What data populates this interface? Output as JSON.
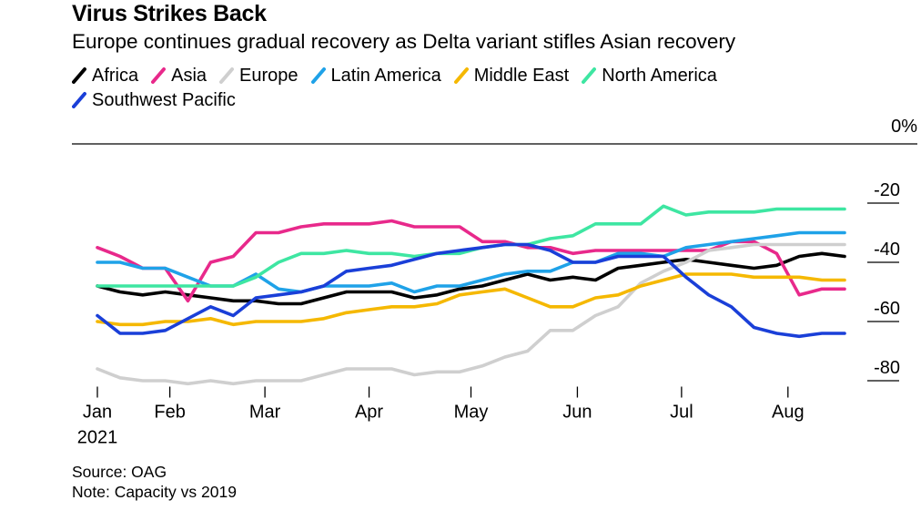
{
  "title": "Virus Strikes Back",
  "subtitle": "Europe continues gradual recovery as Delta variant stifles Asian recovery",
  "source": "Source: OAG",
  "note": "Note: Capacity vs 2019",
  "chart_data": {
    "type": "line",
    "unit_label": "0%",
    "ylim": [
      -85,
      0
    ],
    "yticks": [
      0,
      -20,
      -40,
      -60,
      -80
    ],
    "ytick_labels": [
      "0%",
      "-20",
      "-40",
      "-60",
      "-80"
    ],
    "xlim": [
      0,
      33
    ],
    "xticks": [
      {
        "pos": 0,
        "label": "Jan",
        "sub": "2021"
      },
      {
        "pos": 3.2,
        "label": "Feb"
      },
      {
        "pos": 7.4,
        "label": "Mar"
      },
      {
        "pos": 12.0,
        "label": "Apr"
      },
      {
        "pos": 16.5,
        "label": "May"
      },
      {
        "pos": 21.2,
        "label": "Jun"
      },
      {
        "pos": 25.8,
        "label": "Jul"
      },
      {
        "pos": 30.5,
        "label": "Aug"
      }
    ],
    "legend_placement": "top",
    "grid": false,
    "x": [
      0,
      1,
      2,
      3,
      4,
      5,
      6,
      7,
      8,
      9,
      10,
      11,
      12,
      13,
      14,
      15,
      16,
      17,
      18,
      19,
      20,
      21,
      22,
      23,
      24,
      25,
      26,
      27,
      28,
      29,
      30,
      31,
      32,
      33
    ],
    "series": [
      {
        "name": "Africa",
        "color": "#000000",
        "values": [
          -48,
          -50,
          -51,
          -50,
          -51,
          -52,
          -53,
          -53,
          -54,
          -54,
          -52,
          -50,
          -50,
          -50,
          -52,
          -51,
          -49,
          -48,
          -46,
          -44,
          -46,
          -45,
          -46,
          -42,
          -41,
          -40,
          -39,
          -40,
          -41,
          -42,
          -41,
          -38,
          -37,
          -38
        ]
      },
      {
        "name": "Asia",
        "color": "#e8298b",
        "values": [
          -35,
          -38,
          -42,
          -42,
          -53,
          -40,
          -38,
          -30,
          -30,
          -28,
          -27,
          -27,
          -27,
          -26,
          -28,
          -28,
          -28,
          -33,
          -33,
          -35,
          -35,
          -37,
          -36,
          -36,
          -36,
          -36,
          -36,
          -36,
          -33,
          -33,
          -37,
          -51,
          -49,
          -49
        ]
      },
      {
        "name": "Europe",
        "color": "#cfcfcf",
        "values": [
          -76,
          -79,
          -80,
          -80,
          -81,
          -80,
          -81,
          -80,
          -80,
          -80,
          -78,
          -76,
          -76,
          -76,
          -78,
          -77,
          -77,
          -75,
          -72,
          -70,
          -63,
          -63,
          -58,
          -55,
          -47,
          -43,
          -40,
          -36,
          -35,
          -34,
          -34,
          -34,
          -34,
          -34
        ]
      },
      {
        "name": "Latin America",
        "color": "#1fa2e8",
        "values": [
          -40,
          -40,
          -42,
          -42,
          -45,
          -48,
          -48,
          -44,
          -49,
          -50,
          -48,
          -48,
          -48,
          -47,
          -50,
          -48,
          -48,
          -46,
          -44,
          -43,
          -43,
          -40,
          -40,
          -37,
          -37,
          -38,
          -35,
          -34,
          -33,
          -32,
          -31,
          -30,
          -30,
          -30
        ]
      },
      {
        "name": "Middle East",
        "color": "#f5b800",
        "values": [
          -60,
          -61,
          -61,
          -60,
          -60,
          -59,
          -61,
          -60,
          -60,
          -60,
          -59,
          -57,
          -56,
          -55,
          -55,
          -54,
          -51,
          -50,
          -49,
          -52,
          -55,
          -55,
          -52,
          -51,
          -48,
          -46,
          -44,
          -44,
          -44,
          -45,
          -45,
          -45,
          -46,
          -46
        ]
      },
      {
        "name": "North America",
        "color": "#3ee6a2",
        "values": [
          -48,
          -48,
          -48,
          -48,
          -48,
          -48,
          -48,
          -45,
          -40,
          -37,
          -37,
          -36,
          -37,
          -37,
          -38,
          -37,
          -37,
          -35,
          -34,
          -34,
          -32,
          -31,
          -27,
          -27,
          -27,
          -21,
          -24,
          -23,
          -23,
          -23,
          -22,
          -22,
          -22,
          -22
        ]
      },
      {
        "name": "Southwest Pacific",
        "color": "#1a3fd8",
        "values": [
          -58,
          -64,
          -64,
          -63,
          -59,
          -55,
          -58,
          -52,
          -51,
          -50,
          -48,
          -43,
          -42,
          -41,
          -39,
          -37,
          -36,
          -35,
          -34,
          -34,
          -36,
          -40,
          -40,
          -38,
          -38,
          -38,
          -45,
          -51,
          -55,
          -62,
          -64,
          -65,
          -64,
          -64
        ]
      }
    ]
  }
}
